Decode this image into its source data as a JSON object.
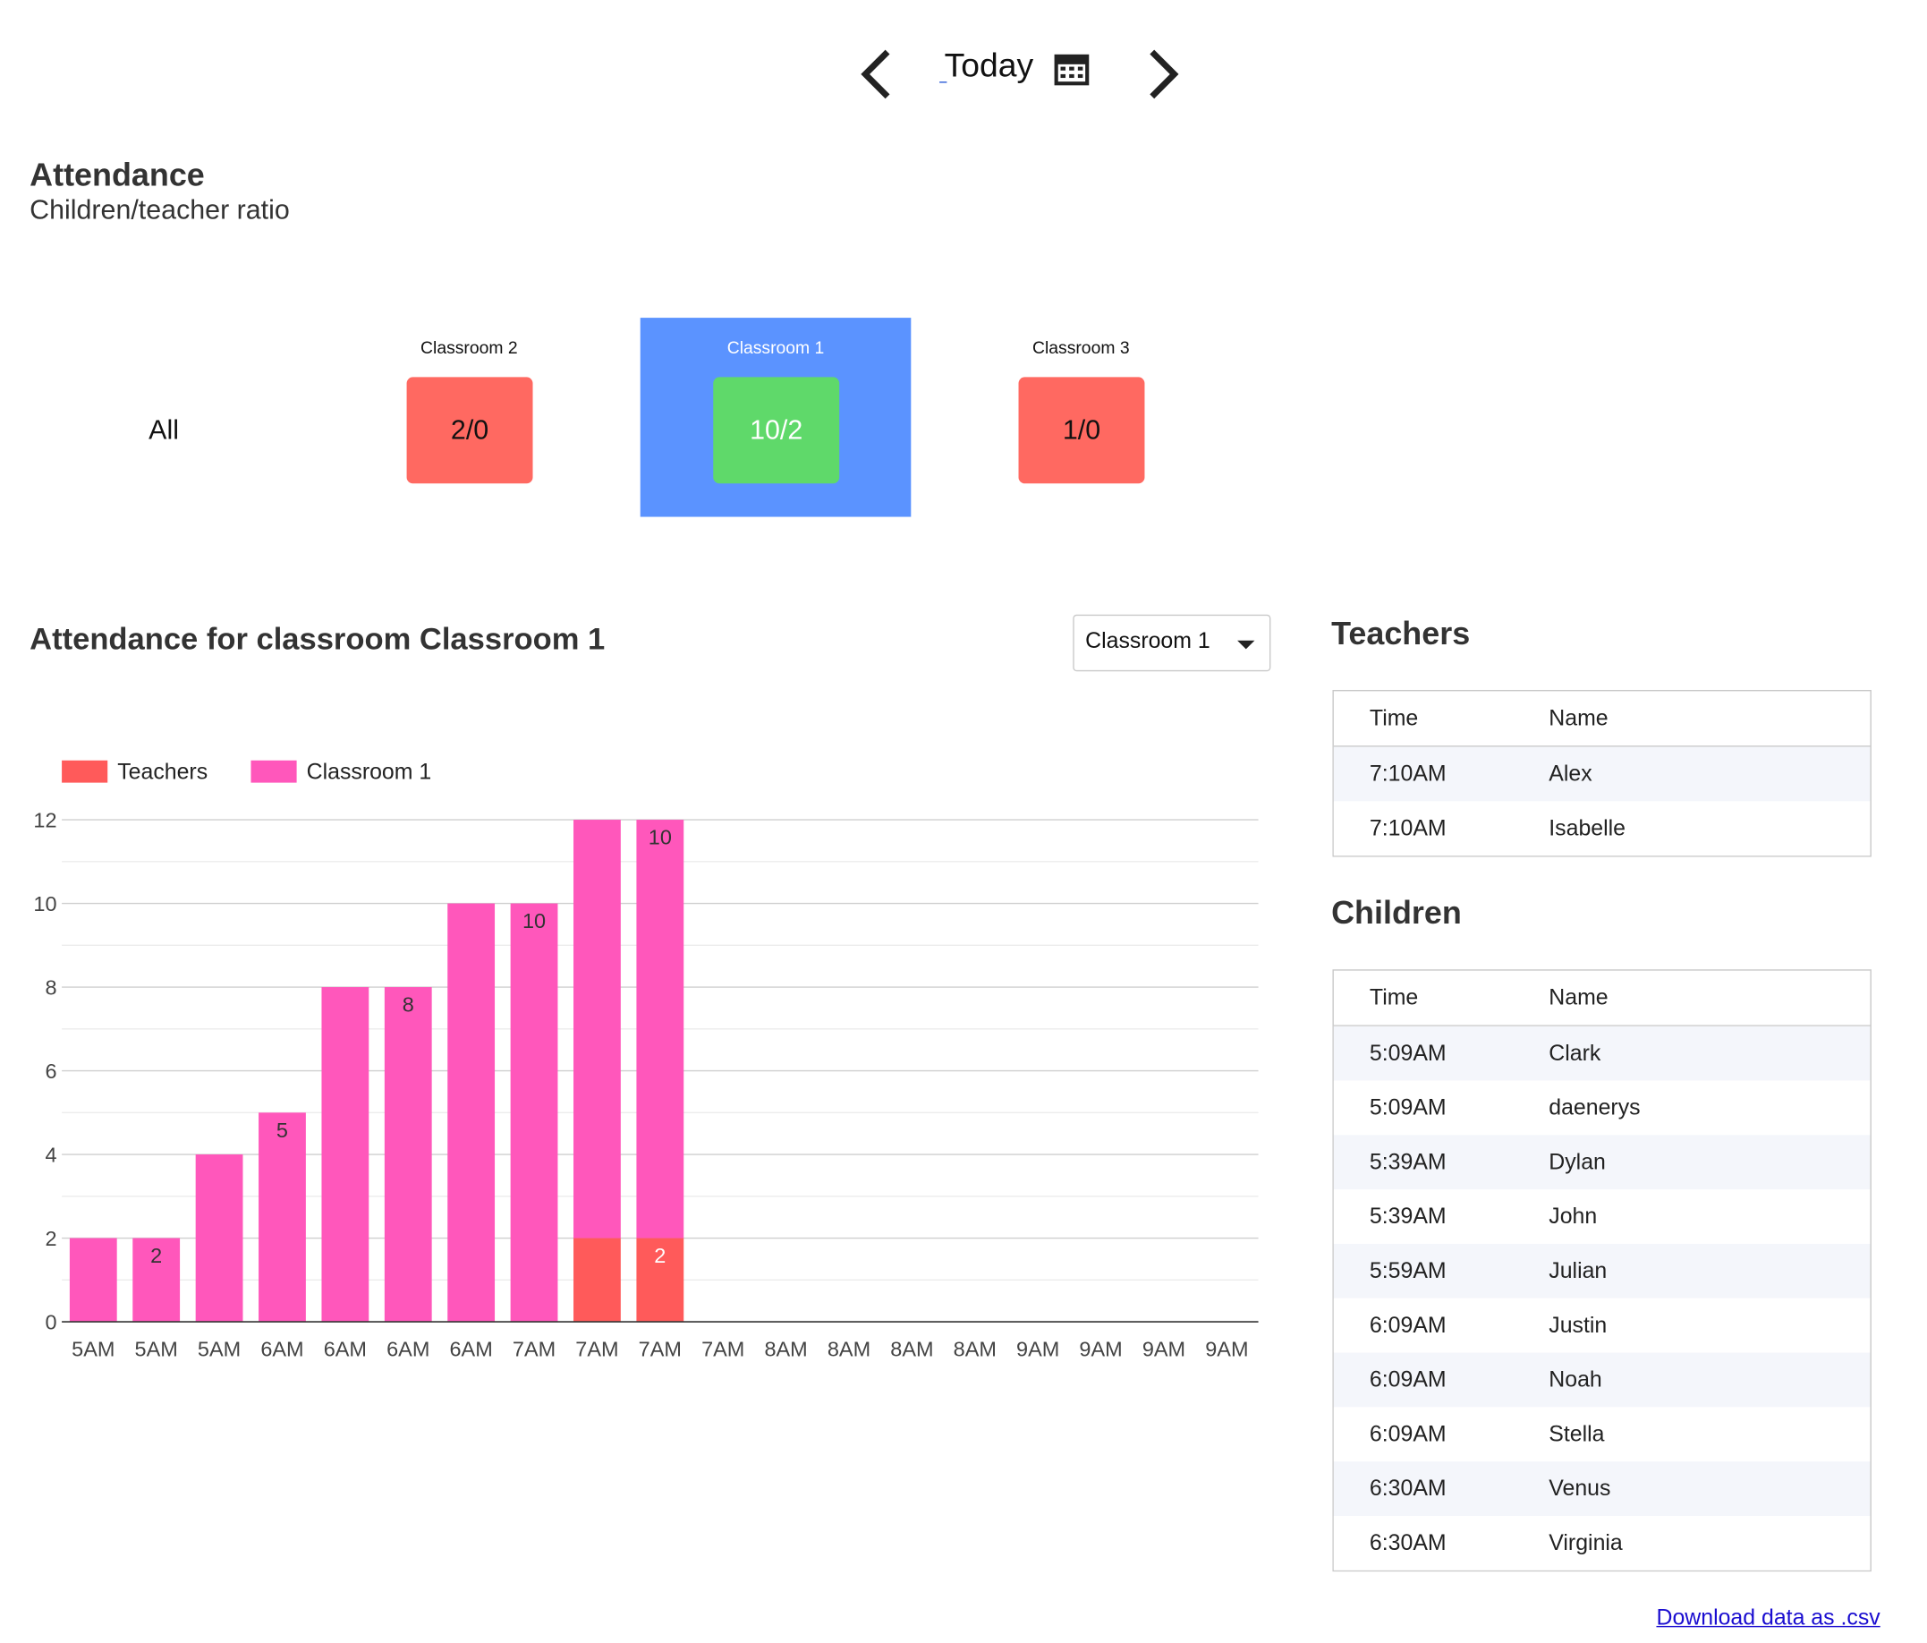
{
  "nav": {
    "date_label": "Today",
    "prev_icon": "chevron-left-icon",
    "next_icon": "chevron-right-icon",
    "calendar_icon": "calendar-icon"
  },
  "attendance": {
    "title": "Attendance",
    "subtitle": "Children/teacher ratio"
  },
  "tiles": {
    "all_label": "All",
    "items": [
      {
        "name": "Classroom 2",
        "ratio": "2/0",
        "color": "#ff6961",
        "selected": false
      },
      {
        "name": "Classroom 1",
        "ratio": "10/2",
        "color": "#5fd96a",
        "selected": true
      },
      {
        "name": "Classroom 3",
        "ratio": "1/0",
        "color": "#ff6961",
        "selected": false
      }
    ],
    "selected_bg": "#5b93ff"
  },
  "chart_section": {
    "title": "Attendance for classroom Classroom 1",
    "select_value": "Classroom 1"
  },
  "chart_data": {
    "type": "bar",
    "stacked": true,
    "categories": [
      "5AM",
      "5AM",
      "5AM",
      "6AM",
      "6AM",
      "6AM",
      "6AM",
      "7AM",
      "7AM",
      "7AM",
      "7AM",
      "8AM",
      "8AM",
      "8AM",
      "8AM",
      "9AM",
      "9AM",
      "9AM",
      "9AM"
    ],
    "series": [
      {
        "name": "Teachers",
        "color": "#ff5a5a",
        "values": [
          0,
          0,
          0,
          0,
          0,
          0,
          0,
          0,
          2,
          2,
          0,
          0,
          0,
          0,
          0,
          0,
          0,
          0,
          0
        ]
      },
      {
        "name": "Classroom 1",
        "color": "#ff57bb",
        "values": [
          2,
          2,
          4,
          5,
          8,
          8,
          10,
          10,
          10,
          10,
          0,
          0,
          0,
          0,
          0,
          0,
          0,
          0,
          0
        ]
      }
    ],
    "data_labels": [
      {
        "index": 1,
        "series": 1,
        "text": "2"
      },
      {
        "index": 3,
        "series": 1,
        "text": "5"
      },
      {
        "index": 5,
        "series": 1,
        "text": "8"
      },
      {
        "index": 7,
        "series": 1,
        "text": "10"
      },
      {
        "index": 9,
        "series": 1,
        "text": "10"
      },
      {
        "index": 9,
        "series": 0,
        "text": "2"
      }
    ],
    "yticks": [
      "0",
      "2",
      "4",
      "6",
      "8",
      "10",
      "12"
    ],
    "ylim": [
      0,
      12
    ],
    "grid": true,
    "legend": "top-left"
  },
  "teachers": {
    "title": "Teachers",
    "columns": [
      "Time",
      "Name"
    ],
    "rows": [
      {
        "time": "7:10AM",
        "name": "Alex"
      },
      {
        "time": "7:10AM",
        "name": "Isabelle"
      }
    ]
  },
  "children": {
    "title": "Children",
    "columns": [
      "Time",
      "Name"
    ],
    "rows": [
      {
        "time": "5:09AM",
        "name": "Clark"
      },
      {
        "time": "5:09AM",
        "name": "daenerys"
      },
      {
        "time": "5:39AM",
        "name": "Dylan"
      },
      {
        "time": "5:39AM",
        "name": "John"
      },
      {
        "time": "5:59AM",
        "name": "Julian"
      },
      {
        "time": "6:09AM",
        "name": "Justin"
      },
      {
        "time": "6:09AM",
        "name": "Noah"
      },
      {
        "time": "6:09AM",
        "name": "Stella"
      },
      {
        "time": "6:30AM",
        "name": "Venus"
      },
      {
        "time": "6:30AM",
        "name": "Virginia"
      }
    ]
  },
  "download_label": "Download data as .csv"
}
